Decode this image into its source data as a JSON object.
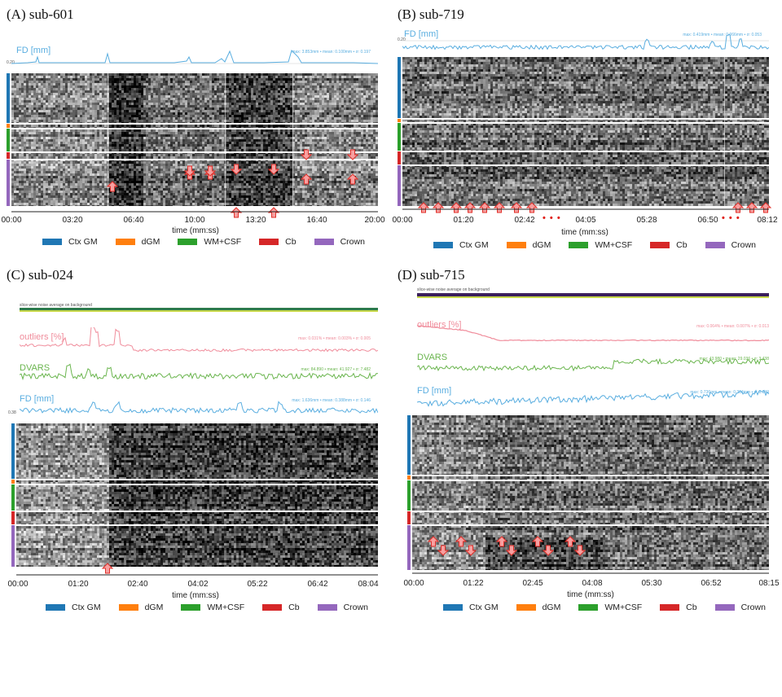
{
  "colors": {
    "ctx_gm": "#1f77b4",
    "dgm": "#ff7f0e",
    "wm_csf": "#2ca02c",
    "cb": "#d62728",
    "crown": "#9467bd",
    "fd": "#5aaee0",
    "outliers": "#f08c9b",
    "dvars": "#6ab54e",
    "arrow_fill": "#f7a0a0",
    "arrow_stroke": "#e0302a"
  },
  "legend": [
    "Ctx GM",
    "dGM",
    "WM+CSF",
    "Cb",
    "Crown"
  ],
  "axis_title": "time (mm:ss)",
  "panels": {
    "A": {
      "title": "(A)  sub-601",
      "fd_label": "FD [mm]",
      "fd_stats": "max: 3.853mm • mean: 0.100mm • σ: 0.197",
      "fd_yticklabel": "0.20",
      "ticks": [
        "00:00",
        "03:20",
        "06:40",
        "10:00",
        "13:20",
        "16:40",
        "20:00"
      ]
    },
    "B": {
      "title": "(B)  sub-719",
      "fd_label": "FD [mm]",
      "fd_stats": "max: 0.419mm • mean: 0.066mm • σ: 0.053",
      "fd_yticklabel": "0.20",
      "ticks": [
        "00:00",
        "01:20",
        "02:42",
        "04:05",
        "05:28",
        "06:50",
        "08:12"
      ]
    },
    "C": {
      "title": "(C)  sub-024",
      "noise_label": "slice-wise noise average on background",
      "outliers_label": "outliers [%]",
      "outliers_stats": "max: 0.031% • mean: 0.003% • σ: 0.005",
      "dvars_label": "DVARS",
      "dvars_stats": "max: 84.890 • mean: 41.927 • σ: 7.482",
      "fd_label": "FD [mm]",
      "fd_stats": "max: 1.636mm • mean: 0.388mm • σ: 0.146",
      "fd_yticklabel": "0.38",
      "ticks": [
        "00:00",
        "01:20",
        "02:40",
        "04:02",
        "05:22",
        "06:42",
        "08:04"
      ]
    },
    "D": {
      "title": "(D)  sub-715",
      "noise_label": "slice-wise noise average on background",
      "outliers_label": "outliers [%]",
      "outliers_stats": "max: 0.064% • mean: 0.007% • σ: 0.013",
      "dvars_label": "DVARS",
      "dvars_stats": "max: 43.980 • mean: 29.036 • σ: 3.438",
      "fd_label": "FD [mm]",
      "fd_stats": "max: 0.736mm • mean: 0.384mm • σ: 0.140",
      "ticks": [
        "00:00",
        "01:22",
        "02:45",
        "04:08",
        "05:30",
        "06:52",
        "08:15"
      ]
    }
  }
}
